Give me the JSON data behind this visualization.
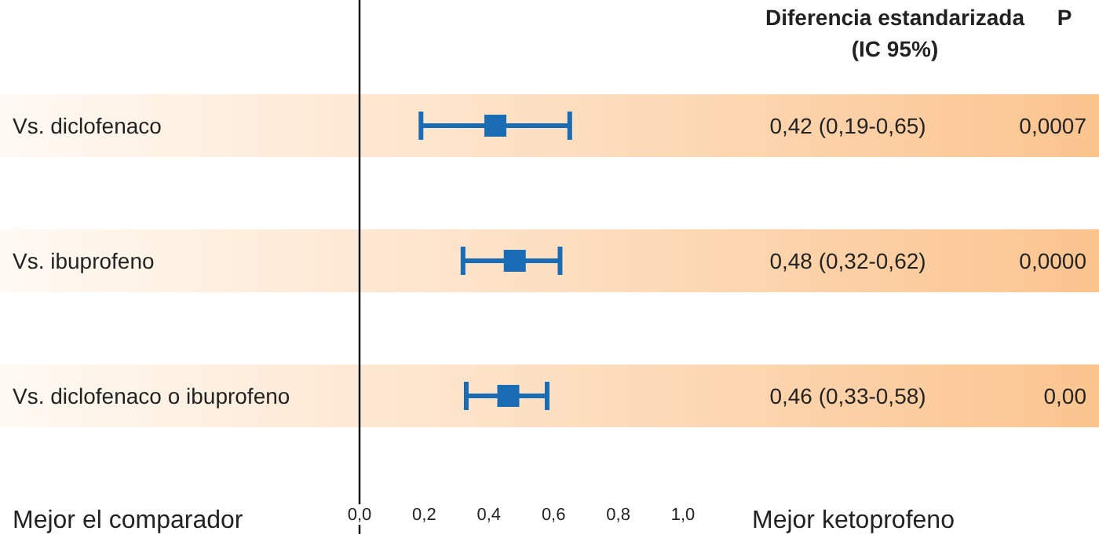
{
  "chart_data": {
    "type": "scatter",
    "orientation": "horizontal",
    "marker": "square",
    "categories": [
      "Vs. diclofenaco",
      "Vs. ibuprofeno",
      "Vs. diclofenaco o ibuprofeno"
    ],
    "values": [
      0.42,
      0.48,
      0.46
    ],
    "errors": [
      [
        0.19,
        0.65
      ],
      [
        0.32,
        0.62
      ],
      [
        0.33,
        0.58
      ]
    ],
    "color": "#1a6db5",
    "value_labels": [
      "0,42 (0,19-0,65)",
      "0,48 (0,32-0,62)",
      "0,46 (0,33-0,58)"
    ],
    "xlim": [
      0,
      1
    ],
    "xticks": [
      {
        "value": 0,
        "label": "0,0"
      },
      {
        "value": 0.2,
        "label": "0,2"
      },
      {
        "value": 0.4,
        "label": "0,4"
      },
      {
        "value": 0.6,
        "label": "0,6"
      },
      {
        "value": 0.8,
        "label": "0,8"
      },
      {
        "value": 1,
        "label": "1,0"
      }
    ],
    "xlabel": "Mejor ketoprofeno",
    "grid": false,
    "annotations": [
      "Diferencia estandarizada (IC 95%)",
      "P",
      "Mejor el comparador",
      "0,0007",
      "0,0000",
      "0,00"
    ]
  }
}
